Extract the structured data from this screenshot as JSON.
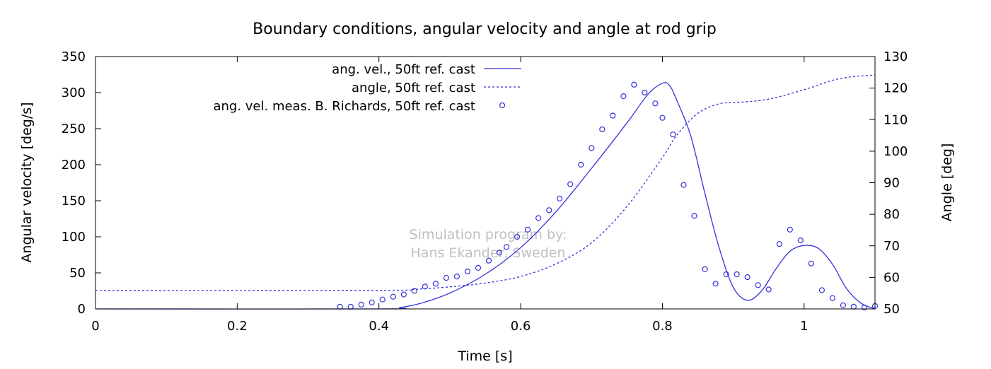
{
  "chart_data": {
    "type": "line",
    "title": "Boundary conditions, angular velocity and angle at rod grip",
    "xlabel": "Time [s]",
    "ylabel": "Angular velocity [deg/s]",
    "y2label": "Angle [deg]",
    "xlim": [
      0,
      1.1
    ],
    "ylim": [
      0,
      350
    ],
    "y2lim": [
      50,
      130
    ],
    "xticks": [
      "0",
      "0.2",
      "0.4",
      "0.6",
      "0.8",
      "1"
    ],
    "yticks": [
      "0",
      "50",
      "100",
      "150",
      "200",
      "250",
      "300",
      "350"
    ],
    "y2ticks": [
      "50",
      "60",
      "70",
      "80",
      "90",
      "100",
      "110",
      "120",
      "130"
    ],
    "grid": false,
    "legend_position": "top-left",
    "color": "#3333dd",
    "watermark": [
      "Simulation program by:",
      "Hans Ekander, Sweden"
    ],
    "series": [
      {
        "name": "ang. vel., 50ft ref. cast",
        "style": "solid",
        "axis": "left",
        "x": [
          0,
          0.4,
          0.43,
          0.46,
          0.5,
          0.55,
          0.6,
          0.65,
          0.7,
          0.75,
          0.78,
          0.8,
          0.81,
          0.82,
          0.84,
          0.86,
          0.88,
          0.9,
          0.92,
          0.94,
          0.96,
          0.98,
          1.0,
          1.02,
          1.04,
          1.06,
          1.08,
          1.1
        ],
        "y": [
          0,
          0,
          2,
          8,
          22,
          48,
          85,
          135,
          195,
          258,
          298,
          313,
          310,
          290,
          240,
          160,
          85,
          30,
          12,
          25,
          55,
          80,
          88,
          84,
          62,
          28,
          8,
          0
        ]
      },
      {
        "name": "angle, 50ft ref. cast",
        "style": "dashed",
        "axis": "right",
        "x": [
          0,
          0.4,
          0.45,
          0.5,
          0.55,
          0.6,
          0.65,
          0.7,
          0.75,
          0.8,
          0.82,
          0.85,
          0.88,
          0.91,
          0.95,
          1.0,
          1.05,
          1.1
        ],
        "y": [
          55.8,
          55.9,
          56.2,
          57.0,
          58.2,
          60.3,
          64.3,
          71.0,
          82.5,
          98.0,
          105.0,
          112.0,
          115.0,
          115.5,
          116.5,
          119.5,
          123.0,
          124.2
        ]
      },
      {
        "name": "ang. vel. meas. B. Richards, 50ft ref. cast",
        "style": "markers",
        "axis": "left",
        "x": [
          0.345,
          0.36,
          0.375,
          0.39,
          0.405,
          0.42,
          0.435,
          0.45,
          0.465,
          0.48,
          0.495,
          0.51,
          0.525,
          0.54,
          0.555,
          0.57,
          0.58,
          0.595,
          0.61,
          0.625,
          0.64,
          0.655,
          0.67,
          0.685,
          0.7,
          0.715,
          0.73,
          0.745,
          0.76,
          0.775,
          0.79,
          0.8,
          0.815,
          0.83,
          0.845,
          0.86,
          0.875,
          0.89,
          0.905,
          0.92,
          0.935,
          0.95,
          0.965,
          0.98,
          0.995,
          1.01,
          1.025,
          1.04,
          1.055,
          1.07,
          1.085,
          1.1
        ],
        "y": [
          3,
          3,
          6,
          9,
          13,
          17,
          20,
          25,
          31,
          35,
          43,
          45,
          52,
          57,
          67,
          78,
          86,
          100,
          110,
          126,
          137,
          153,
          173,
          200,
          223,
          249,
          268,
          295,
          311,
          300,
          285,
          265,
          242,
          172,
          129,
          55,
          35,
          48,
          48,
          44,
          33,
          27,
          90,
          110,
          95,
          63,
          26,
          15,
          5,
          3,
          2,
          4
        ]
      }
    ]
  }
}
